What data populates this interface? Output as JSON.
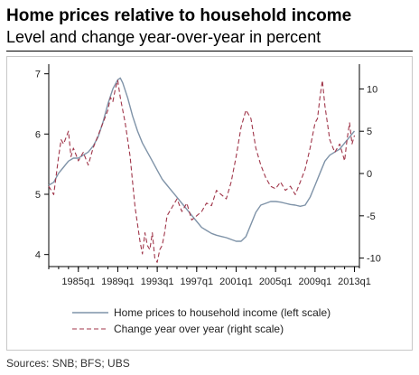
{
  "header": {
    "title": "Home prices relative to household income",
    "subtitle": "Level and change year-over-year in percent"
  },
  "source": "Sources: SNB; BFS; UBS",
  "colors": {
    "level_line": "#7f93a8",
    "yoy_line": "#a0364a",
    "axis": "#000000",
    "panel_border": "#c8c8c8"
  },
  "chart_data": {
    "type": "line",
    "title": "Home prices relative to household income",
    "subtitle": "Level and change year-over-year in percent",
    "x_tick_labels": [
      "1985q1",
      "1989q1",
      "1993q1",
      "1997q1",
      "2001q1",
      "2005q1",
      "2009q1",
      "2013q1"
    ],
    "x_range": [
      1982.0,
      2013.5
    ],
    "y_left": {
      "range": [
        3.8,
        7.1
      ],
      "ticks": [
        "4",
        "5",
        "6",
        "7"
      ]
    },
    "y_right": {
      "range": [
        -11,
        12.5
      ],
      "ticks": [
        "-10",
        "-5",
        "0",
        "5",
        "10"
      ]
    },
    "grid": false,
    "legend_position": "bottom",
    "series": [
      {
        "name": "Home prices to household income (left scale)",
        "axis": "left",
        "style": "solid",
        "x": [
          1982.0,
          1982.5,
          1983.0,
          1983.5,
          1984.0,
          1984.5,
          1985.0,
          1985.5,
          1986.0,
          1986.5,
          1987.0,
          1987.5,
          1988.0,
          1988.5,
          1989.0,
          1989.25,
          1989.5,
          1990.0,
          1990.5,
          1991.0,
          1991.5,
          1992.0,
          1992.5,
          1993.0,
          1993.5,
          1994.0,
          1994.5,
          1995.0,
          1995.5,
          1996.0,
          1996.5,
          1997.0,
          1997.5,
          1998.0,
          1998.5,
          1999.0,
          1999.5,
          2000.0,
          2000.5,
          2001.0,
          2001.5,
          2002.0,
          2002.5,
          2003.0,
          2003.5,
          2004.0,
          2004.5,
          2005.0,
          2005.5,
          2006.0,
          2006.5,
          2007.0,
          2007.5,
          2008.0,
          2008.5,
          2009.0,
          2009.5,
          2010.0,
          2010.5,
          2011.0,
          2011.5,
          2012.0,
          2012.5,
          2013.0
        ],
        "values": [
          5.15,
          5.2,
          5.35,
          5.45,
          5.55,
          5.6,
          5.6,
          5.65,
          5.7,
          5.8,
          5.95,
          6.2,
          6.5,
          6.75,
          6.9,
          6.93,
          6.85,
          6.6,
          6.3,
          6.05,
          5.85,
          5.7,
          5.55,
          5.4,
          5.25,
          5.15,
          5.05,
          4.95,
          4.85,
          4.75,
          4.65,
          4.55,
          4.45,
          4.4,
          4.35,
          4.32,
          4.3,
          4.28,
          4.25,
          4.22,
          4.22,
          4.3,
          4.5,
          4.7,
          4.82,
          4.85,
          4.88,
          4.88,
          4.87,
          4.85,
          4.83,
          4.82,
          4.8,
          4.82,
          4.95,
          5.15,
          5.35,
          5.55,
          5.65,
          5.7,
          5.75,
          5.85,
          5.95,
          6.05
        ]
      },
      {
        "name": "Change year over year (right scale)",
        "axis": "right",
        "style": "dashed",
        "x": [
          1982.0,
          1982.5,
          1983.0,
          1983.25,
          1983.5,
          1984.0,
          1984.25,
          1984.5,
          1985.0,
          1985.5,
          1986.0,
          1986.5,
          1987.0,
          1987.5,
          1988.0,
          1988.25,
          1988.5,
          1988.75,
          1989.0,
          1989.25,
          1989.5,
          1989.75,
          1990.0,
          1990.25,
          1990.5,
          1990.75,
          1991.0,
          1991.25,
          1991.5,
          1991.75,
          1992.0,
          1992.25,
          1992.5,
          1992.75,
          1993.0,
          1993.25,
          1993.5,
          1993.75,
          1994.0,
          1994.5,
          1995.0,
          1995.5,
          1996.0,
          1996.5,
          1997.0,
          1997.5,
          1998.0,
          1998.5,
          1999.0,
          1999.5,
          2000.0,
          2000.5,
          2001.0,
          2001.5,
          2002.0,
          2002.5,
          2003.0,
          2003.5,
          2004.0,
          2004.5,
          2005.0,
          2005.5,
          2006.0,
          2006.5,
          2007.0,
          2007.5,
          2008.0,
          2008.5,
          2009.0,
          2009.25,
          2009.5,
          2009.75,
          2010.0,
          2010.5,
          2011.0,
          2011.5,
          2012.0,
          2012.25,
          2012.5,
          2012.75,
          2013.0
        ],
        "values": [
          -1.5,
          -2.5,
          2.0,
          4.0,
          3.5,
          5.0,
          2.0,
          3.0,
          1.5,
          2.5,
          1.0,
          3.0,
          4.5,
          6.0,
          7.5,
          9.0,
          8.5,
          10.0,
          11.0,
          9.0,
          7.5,
          6.0,
          4.0,
          2.0,
          -1.0,
          -4.0,
          -6.0,
          -8.0,
          -9.5,
          -7.0,
          -8.5,
          -9.0,
          -7.0,
          -10.0,
          -10.5,
          -9.0,
          -8.5,
          -7.0,
          -5.0,
          -4.0,
          -3.0,
          -4.5,
          -3.5,
          -5.5,
          -5.0,
          -4.5,
          -3.5,
          -3.8,
          -2.0,
          -2.5,
          -3.0,
          -1.0,
          2.0,
          5.5,
          7.5,
          6.5,
          3.0,
          1.0,
          -0.5,
          -1.5,
          -1.8,
          -1.0,
          -2.0,
          -1.5,
          -2.5,
          -1.0,
          0.5,
          3.0,
          6.0,
          6.5,
          9.0,
          11.0,
          8.0,
          4.0,
          2.5,
          3.5,
          1.5,
          4.0,
          6.0,
          3.5,
          4.5
        ]
      }
    ]
  }
}
